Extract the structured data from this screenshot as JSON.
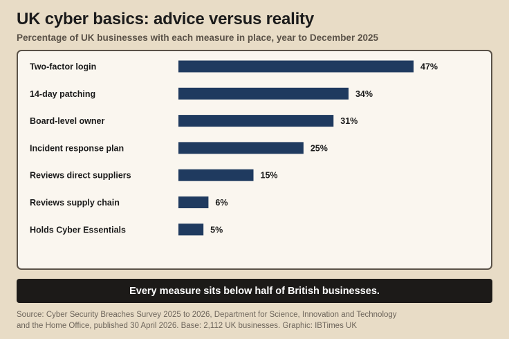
{
  "title": "UK cyber basics: advice versus reality",
  "subtitle": "Percentage of UK businesses with each measure in place, year to December 2025",
  "banner": "Every measure sits below half of British businesses.",
  "source_lines": [
    "Source: Cyber Security Breaches Survey 2025 to 2026, Department for Science, Innovation and Technology",
    "and the Home Office, published 30 April 2026. Base: 2,112 UK businesses. Graphic: IBTimes UK"
  ],
  "colors": {
    "bar": "#1f3a5f",
    "background": "#e8dcc6",
    "panel": "#faf6ef",
    "banner": "#1c1a18"
  },
  "chart_data": {
    "type": "bar",
    "orientation": "horizontal",
    "categories": [
      "Two-factor login",
      "14-day patching",
      "Board-level owner",
      "Incident response plan",
      "Reviews direct suppliers",
      "Reviews supply chain",
      "Holds Cyber Essentials"
    ],
    "values": [
      47,
      34,
      31,
      25,
      15,
      6,
      5
    ],
    "value_labels": [
      "47%",
      "34%",
      "31%",
      "25%",
      "15%",
      "6%",
      "5%"
    ],
    "unit": "%",
    "xlim": [
      0,
      100
    ],
    "grid": false,
    "legend": "none"
  }
}
